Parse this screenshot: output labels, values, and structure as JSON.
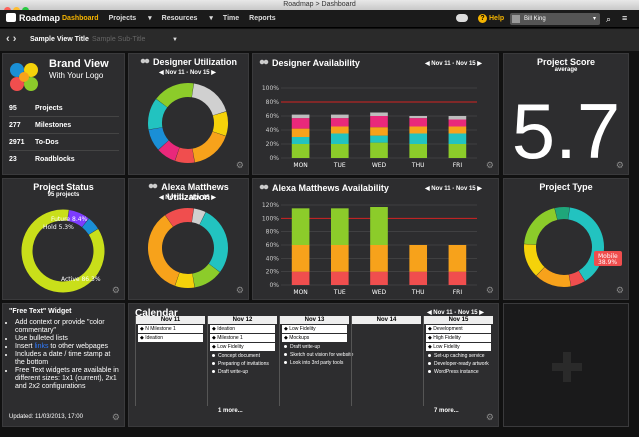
{
  "window": {
    "title": "Roadmap > Dashboard"
  },
  "app": {
    "name": "Roadmap",
    "nav": [
      "Dashboard",
      "Projects",
      "Resources",
      "Time",
      "Reports"
    ],
    "active_nav": "Dashboard",
    "help_label": "Help",
    "user_name": "Bill King"
  },
  "subbar": {
    "view_title": "Sample View Title",
    "view_subtitle": "Sample Sub-Title"
  },
  "brand": {
    "name": "Brand View",
    "tagline": "With Your Logo",
    "stats": [
      {
        "value": "95",
        "label": "Projects"
      },
      {
        "value": "277",
        "label": "Milestones"
      },
      {
        "value": "2971",
        "label": "To-Dos"
      },
      {
        "value": "23",
        "label": "Roadblocks"
      }
    ]
  },
  "designer_utilization": {
    "title": "Designer Utilization",
    "range": "Nov 11 - Nov 15"
  },
  "designer_availability": {
    "title": "Designer Availability",
    "range": "Nov 11 - Nov 15"
  },
  "project_score": {
    "title": "Project Score",
    "subtitle": "average",
    "value": "5.7"
  },
  "project_status": {
    "title": "Project Status",
    "subtitle": "95 projects"
  },
  "alexa_utilization": {
    "title": "Alexa Matthews Utilization",
    "range": "Nov 11 - Nov 15"
  },
  "alexa_availability": {
    "title": "Alexa Matthews Availability",
    "range": "Nov 11 - Nov 15"
  },
  "project_type": {
    "title": "Project Type"
  },
  "free_text": {
    "title": "\"Free Text\" Widget",
    "items": [
      "Add context or provide \"color commentary\"",
      "Use bulleted lists",
      "Insert",
      "Includes a date / time stamp at the bottom",
      "Free Text widgets are available in different sizes: 1x1 (current), 2x1 and 2x2 configurations"
    ],
    "link_word": "links",
    "link_suffix": " to other webpages",
    "updated": "Updated: 11/03/2013, 17:00"
  },
  "calendar": {
    "title": "Calendar",
    "range": "Nov 11 - Nov 15",
    "days": [
      {
        "label": "Nov 11",
        "items": [
          "N Milestone 1",
          "Ideation"
        ],
        "bullets": [],
        "more": ""
      },
      {
        "label": "Nov 12",
        "items": [
          "Ideation",
          "Milestone 1",
          "Low Fidelity"
        ],
        "bullets": [
          "Concept document",
          "Preparing of invitations",
          "Draft write-up"
        ],
        "more": "1 more..."
      },
      {
        "label": "Nov 13",
        "items": [
          "Low Fidelity",
          "Mockups"
        ],
        "bullets": [
          "Draft write-up",
          "Sketch out vision for website",
          "Look into 3rd party tools"
        ],
        "more": ""
      },
      {
        "label": "Nov 14",
        "items": [],
        "bullets": [],
        "more": ""
      },
      {
        "label": "Nov 15",
        "items": [
          "Development",
          "High Fidelity",
          "Low Fidelity"
        ],
        "bullets": [
          "Set-up caching service",
          "Developer-ready artwork",
          "WordPress instance"
        ],
        "more": "7 more..."
      }
    ]
  },
  "chart_data": [
    {
      "type": "pie",
      "title": "Designer Utilization",
      "categories": [
        "Unassigned",
        "Yellow",
        "Orange",
        "Red",
        "Magenta",
        "Blue",
        "Teal",
        "Green"
      ],
      "values": [
        18,
        10,
        17,
        8,
        8,
        9,
        13,
        17
      ],
      "colors": [
        "#d0d0d0",
        "#f5d20a",
        "#f7a21b",
        "#f04e4e",
        "#e9287b",
        "#1a8fd6",
        "#22c3c0",
        "#8ccc2a"
      ]
    },
    {
      "type": "bar",
      "title": "Designer Availability",
      "categories": [
        "MON",
        "TUE",
        "WED",
        "THU",
        "FRI"
      ],
      "ylim": [
        0,
        100
      ],
      "yticks": [
        "0%",
        "20%",
        "40%",
        "60%",
        "80%",
        "100%"
      ],
      "threshold": 80,
      "series": [
        {
          "name": "Green",
          "color": "#8ccc2a",
          "values": [
            20,
            20,
            22,
            20,
            20
          ]
        },
        {
          "name": "Teal",
          "color": "#22c3c0",
          "values": [
            10,
            15,
            10,
            15,
            15
          ]
        },
        {
          "name": "Orange",
          "color": "#f7a21b",
          "values": [
            12,
            10,
            12,
            10,
            10
          ]
        },
        {
          "name": "Pink",
          "color": "#e9287b",
          "values": [
            15,
            12,
            16,
            12,
            10
          ]
        },
        {
          "name": "Unassigned",
          "color": "#bdbdbd",
          "values": [
            5,
            5,
            5,
            3,
            5
          ]
        }
      ]
    },
    {
      "type": "pie",
      "title": "Project Status",
      "categories": [
        "Future",
        "Hold",
        "Active"
      ],
      "values": [
        8.4,
        5.3,
        86.3
      ],
      "labels": [
        "Future 8.4%",
        "Hold 5.3%",
        "Active 86.3%"
      ],
      "colors": [
        "#7d3cff",
        "#1a8fd6",
        "#c9df1a"
      ]
    },
    {
      "type": "pie",
      "title": "Alexa Matthews Utilization",
      "categories": [
        "Unassigned",
        "Teal",
        "Green",
        "Yellow",
        "Orange",
        "Red"
      ],
      "values": [
        5,
        28,
        12,
        8,
        35,
        12
      ],
      "colors": [
        "#d0d0d0",
        "#22c3c0",
        "#8ccc2a",
        "#f5d20a",
        "#f7a21b",
        "#f04e4e"
      ]
    },
    {
      "type": "bar",
      "title": "Alexa Matthews Availability",
      "categories": [
        "MON",
        "TUE",
        "WED",
        "THU",
        "FRI"
      ],
      "ylim": [
        0,
        120
      ],
      "yticks": [
        "0%",
        "20%",
        "40%",
        "60%",
        "80%",
        "100%",
        "120%"
      ],
      "threshold": 100,
      "series": [
        {
          "name": "Red",
          "color": "#f04e4e",
          "values": [
            20,
            20,
            20,
            20,
            20
          ]
        },
        {
          "name": "Orange",
          "color": "#f7a21b",
          "values": [
            40,
            40,
            40,
            40,
            40
          ]
        },
        {
          "name": "Green",
          "color": "#8ccc2a",
          "values": [
            55,
            55,
            57,
            0,
            0
          ]
        }
      ]
    },
    {
      "type": "pie",
      "title": "Project Type",
      "categories": [
        "Mobile",
        "Red",
        "Orange",
        "Yellow",
        "Green",
        "Teal"
      ],
      "values": [
        38.9,
        6,
        15,
        14,
        20,
        6.1
      ],
      "labels": [
        "Mobile 38.9%"
      ],
      "colors": [
        "#22c3c0",
        "#f04e4e",
        "#f7a21b",
        "#f5d20a",
        "#8ccc2a",
        "#1fa67a"
      ]
    }
  ]
}
